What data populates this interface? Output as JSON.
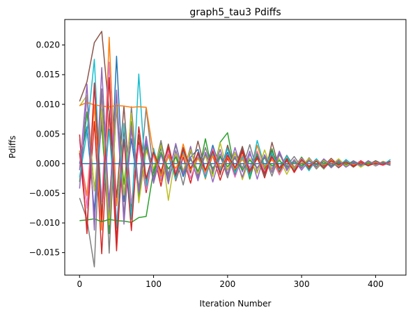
{
  "chart_data": {
    "type": "line",
    "title": "graph5_tau3 Pdiffs",
    "xlabel": "Iteration Number",
    "ylabel": "Pdiffs",
    "xlim": [
      -20,
      441
    ],
    "ylim": [
      -0.0188,
      0.0243
    ],
    "x_ticks": [
      0,
      100,
      200,
      300,
      400
    ],
    "x_tick_labels": [
      "0",
      "100",
      "200",
      "300",
      "400"
    ],
    "y_ticks": [
      -0.015,
      -0.01,
      -0.005,
      0.0,
      0.005,
      0.01,
      0.015,
      0.02
    ],
    "y_tick_labels": [
      "−0.015",
      "−0.010",
      "−0.005",
      "0.000",
      "0.005",
      "0.010",
      "0.015",
      "0.020"
    ],
    "grid": false,
    "legend": "none",
    "x": [
      0,
      10,
      20,
      30,
      40,
      50,
      60,
      70,
      80,
      90,
      100,
      110,
      120,
      130,
      140,
      150,
      160,
      170,
      180,
      190,
      200,
      210,
      220,
      230,
      240,
      250,
      260,
      270,
      280,
      290,
      300,
      310,
      320,
      330,
      340,
      350,
      360,
      370,
      380,
      390,
      400,
      410,
      420
    ],
    "series_colors": [
      "#1f77b4",
      "#ff7f0e",
      "#2ca02c",
      "#d62728",
      "#9467bd",
      "#8c564b",
      "#e377c2",
      "#7f7f7f",
      "#bcbd22",
      "#17becf"
    ],
    "series": [
      {
        "values": [
          0.0,
          0.0062,
          -0.0081,
          0.0123,
          -0.0095,
          0.0181,
          -0.0064,
          0.0042,
          -0.0052,
          0.0035,
          -0.0012,
          0.0026,
          -0.0031,
          0.0018,
          -0.0022,
          0.0011,
          0.0024,
          -0.0015,
          0.0031,
          -0.0008,
          0.0019,
          -0.0021,
          0.0027,
          -0.0011,
          0.0016,
          -0.0019,
          0.0022,
          -0.0007,
          0.0013,
          -0.0012,
          0.0009,
          -0.0005,
          0.0008,
          -0.0006,
          0.0004,
          -0.0003,
          0.0005,
          -0.0004,
          0.0003,
          -0.0002,
          0.0002,
          -0.0001,
          0.0004
        ]
      },
      {
        "values": [
          0.0022,
          -0.0054,
          0.0098,
          -0.0112,
          0.0213,
          -0.0071,
          0.0053,
          -0.0091,
          0.0044,
          -0.0037,
          0.0021,
          -0.0029,
          0.0016,
          -0.0024,
          0.0033,
          -0.0012,
          0.0017,
          -0.0026,
          0.0021,
          -0.0014,
          0.0028,
          -0.0009,
          0.0014,
          -0.0023,
          0.0031,
          -0.0008,
          0.0012,
          -0.0016,
          0.0007,
          -0.0011,
          0.0006,
          -0.0008,
          0.0005,
          -0.0007,
          0.0006,
          -0.0004,
          0.0003,
          -0.0005,
          0.0004,
          -0.0003,
          0.0002,
          -0.0002,
          0.0001
        ]
      },
      {
        "values": [
          -0.0031,
          0.0087,
          -0.0043,
          0.0065,
          -0.0118,
          0.0097,
          -0.0035,
          0.0071,
          -0.0058,
          0.0029,
          -0.0024,
          0.0037,
          -0.0019,
          0.0031,
          -0.0013,
          0.0026,
          -0.0021,
          0.0042,
          -0.0017,
          0.0036,
          0.0052,
          -0.0013,
          0.0021,
          -0.0026,
          0.0018,
          -0.0011,
          0.0025,
          -0.0014,
          0.0009,
          -0.0008,
          0.0011,
          -0.0006,
          0.0004,
          -0.0009,
          0.0005,
          -0.0004,
          0.0006,
          -0.0003,
          0.0002,
          -0.0004,
          0.0003,
          -0.0001,
          0.0002
        ]
      },
      {
        "values": [
          0.0018,
          -0.0103,
          0.0071,
          -0.0152,
          0.0089,
          -0.0147,
          0.0062,
          -0.0084,
          0.0036,
          -0.0049,
          0.0017,
          -0.0038,
          0.0024,
          -0.0029,
          0.0011,
          -0.0033,
          0.0019,
          -0.0022,
          0.0014,
          -0.0028,
          0.0009,
          -0.0017,
          0.0023,
          -0.0019,
          0.0012,
          -0.0024,
          0.0016,
          -0.0013,
          0.0008,
          -0.0015,
          0.0005,
          -0.0009,
          0.0007,
          -0.0005,
          0.0004,
          -0.0007,
          0.0003,
          -0.0004,
          0.0005,
          -0.0003,
          0.0001,
          -0.0002,
          0.0003
        ]
      },
      {
        "values": [
          -0.0042,
          0.0115,
          -0.0097,
          0.0078,
          -0.0061,
          0.0093,
          -0.0096,
          0.0058,
          -0.0041,
          0.0046,
          -0.0028,
          0.0019,
          -0.0034,
          0.0022,
          -0.0018,
          0.0029,
          -0.0024,
          0.0016,
          -0.0031,
          0.0012,
          -0.0019,
          0.0027,
          -0.0014,
          0.0021,
          -0.0026,
          0.0015,
          -0.0009,
          0.0018,
          -0.0012,
          0.0007,
          -0.0008,
          0.001,
          -0.0005,
          0.0006,
          -0.0007,
          0.0004,
          -0.0003,
          0.0005,
          -0.0002,
          0.0003,
          -0.0004,
          0.0002,
          -0.0001
        ]
      },
      {
        "values": [
          0.0105,
          0.0138,
          0.0204,
          0.0223,
          0.0086,
          -0.0057,
          0.0097,
          -0.0072,
          0.0049,
          -0.0031,
          0.0024,
          -0.0017,
          0.0033,
          -0.0021,
          0.0027,
          -0.0016,
          0.0038,
          -0.0012,
          0.0024,
          -0.0019,
          0.0031,
          -0.0008,
          0.0029,
          -0.0015,
          0.0011,
          -0.0022,
          0.0036,
          -0.0009,
          0.0014,
          -0.0006,
          0.0008,
          -0.0011,
          0.0006,
          -0.0004,
          0.0009,
          -0.0003,
          0.0004,
          -0.0006,
          0.0003,
          -0.0002,
          0.0005,
          -0.0001,
          0.0002
        ]
      },
      {
        "values": [
          0.0041,
          -0.0075,
          0.0128,
          -0.0064,
          0.0171,
          -0.0102,
          0.0045,
          -0.0067,
          0.0031,
          -0.0044,
          0.0015,
          -0.0027,
          0.0022,
          -0.0014,
          0.0019,
          -0.0025,
          0.0011,
          -0.0018,
          0.0026,
          -0.0009,
          0.0015,
          -0.0023,
          0.0012,
          -0.0006,
          0.0021,
          -0.0013,
          0.0008,
          -0.0019,
          0.0005,
          -0.0007,
          0.0009,
          -0.0004,
          0.0006,
          -0.0008,
          0.0003,
          -0.0005,
          0.0004,
          -0.0002,
          0.0003,
          -0.0004,
          0.0001,
          -0.0003,
          0.0002
        ]
      },
      {
        "values": [
          -0.0058,
          -0.0094,
          -0.0174,
          0.0126,
          -0.0151,
          0.0113,
          -0.0088,
          0.0096,
          -0.0047,
          0.0094,
          -0.0016,
          0.0039,
          -0.0025,
          0.0013,
          -0.0036,
          0.0021,
          -0.0014,
          0.0027,
          -0.0011,
          0.0016,
          -0.0024,
          0.0019,
          -0.0008,
          0.0032,
          -0.0013,
          0.0011,
          -0.0021,
          0.0015,
          -0.0004,
          0.0012,
          -0.0006,
          0.0007,
          -0.0009,
          0.0004,
          -0.0005,
          0.0006,
          -0.0003,
          0.0002,
          -0.0004,
          0.0005,
          -0.0002,
          0.0001,
          -0.0003
        ]
      },
      {
        "values": [
          0.0097,
          0.0115,
          -0.0046,
          0.0092,
          -0.0103,
          0.0101,
          -0.0053,
          0.0085,
          -0.0066,
          0.0022,
          -0.0009,
          0.0031,
          -0.0062,
          0.0017,
          -0.0012,
          0.0024,
          -0.0017,
          0.0013,
          -0.0022,
          0.0035,
          -0.0011,
          0.0018,
          -0.0027,
          0.0009,
          -0.0016,
          0.0023,
          -0.0012,
          0.0008,
          -0.0018,
          0.0006,
          -0.0004,
          0.0009,
          -0.0007,
          0.0005,
          -0.0003,
          0.0008,
          -0.0004,
          0.0003,
          -0.0006,
          0.0002,
          -0.0003,
          0.0004,
          -0.0001
        ]
      },
      {
        "values": [
          -0.0023,
          0.0052,
          0.0176,
          -0.0083,
          0.0058,
          -0.0109,
          0.0068,
          -0.0094,
          0.0151,
          -0.0038,
          0.0026,
          -0.0022,
          0.0013,
          -0.0027,
          0.0021,
          -0.0009,
          0.0016,
          -0.0024,
          0.0018,
          -0.0012,
          0.0026,
          -0.0016,
          0.0011,
          -0.0022,
          0.0039,
          -0.0005,
          0.0017,
          -0.0011,
          0.0013,
          -0.0009,
          0.0006,
          -0.0012,
          0.0008,
          -0.0006,
          0.0004,
          -0.0005,
          0.0007,
          -0.0003,
          0.0002,
          -0.0004,
          0.0003,
          -0.0002,
          0.0007
        ]
      },
      {
        "values": [
          0.0,
          0.0,
          0.0,
          0.0,
          0.0,
          0.0,
          0.0,
          0.0,
          0.0,
          0.0,
          0.0,
          0.0,
          0.0,
          0.0,
          0.0,
          0.0,
          0.0,
          0.0,
          0.0,
          0.0,
          0.0,
          0.0,
          0.0,
          0.0,
          0.0,
          0.0,
          0.0,
          0.0,
          0.0,
          0.0,
          0.0,
          0.0,
          0.0,
          0.0,
          0.0,
          0.0,
          0.0,
          0.0,
          0.0,
          0.0,
          0.0,
          0.0,
          0.0
        ]
      },
      {
        "values": [
          0.0098,
          0.0103,
          0.0099,
          0.0097,
          0.0096,
          0.0098,
          0.0097,
          0.0095,
          0.0096,
          0.0095,
          0.0016,
          -0.0021,
          0.0012,
          -0.0008,
          0.0015,
          -0.0011,
          0.0009,
          -0.0014,
          0.0013,
          -0.0006,
          0.0011,
          -0.0009,
          0.0007,
          -0.0012,
          0.0008,
          -0.0005,
          0.0006,
          -0.0007,
          0.0004,
          -0.0006,
          0.0003,
          -0.0004,
          0.0005,
          -0.0002,
          0.0003,
          -0.0003,
          0.0002,
          -0.0002,
          0.0001,
          -0.0001,
          0.0002,
          -0.0001,
          0.0001
        ]
      },
      {
        "values": [
          -0.0096,
          -0.0095,
          -0.0093,
          -0.0098,
          -0.0094,
          -0.0096,
          -0.0097,
          -0.0099,
          -0.0091,
          -0.0089,
          -0.0012,
          0.0018,
          -0.0009,
          0.0011,
          -0.0015,
          0.0007,
          -0.0013,
          0.0016,
          -0.0008,
          0.0012,
          -0.0005,
          0.0009,
          -0.0011,
          0.0006,
          -0.0007,
          0.001,
          -0.0004,
          0.0005,
          -0.0006,
          0.0003,
          -0.0003,
          0.0004,
          -0.0002,
          0.0003,
          -0.0004,
          0.0002,
          -0.0001,
          0.0003,
          -0.0002,
          0.0001,
          -0.0001,
          0.0002,
          -0.0001
        ]
      },
      {
        "values": [
          0.0049,
          -0.0118,
          0.0136,
          -0.0097,
          0.0145,
          -0.0129,
          0.0041,
          -0.0113,
          0.0062,
          -0.0025,
          0.0019,
          -0.0013,
          0.0028,
          -0.0019,
          0.0024,
          -0.0008,
          0.0017,
          -0.0011,
          0.0021,
          -0.0016,
          0.0014,
          -0.0007,
          0.0019,
          -0.0013,
          0.0009,
          -0.0016,
          0.0011,
          -0.0008,
          0.0005,
          -0.0013,
          0.0007,
          -0.0005,
          0.0004,
          -0.0007,
          0.0005,
          -0.0002,
          0.0003,
          -0.0004,
          0.0002,
          -0.0003,
          0.0001,
          -0.0002,
          0.0004
        ]
      },
      {
        "values": [
          -0.0011,
          0.0134,
          -0.0112,
          0.0162,
          -0.0078,
          0.0124,
          -0.0102,
          0.0064,
          -0.0049,
          0.0041,
          -0.0033,
          0.0015,
          -0.0021,
          0.0034,
          -0.0016,
          0.0011,
          -0.0029,
          0.0019,
          -0.0013,
          0.0024,
          -0.0017,
          0.0012,
          -0.0023,
          0.0016,
          -0.0008,
          0.0013,
          -0.0015,
          0.0021,
          -0.0009,
          0.0006,
          -0.0011,
          0.0005,
          -0.0006,
          0.0008,
          -0.0003,
          0.0005,
          -0.0006,
          0.0002,
          -0.0003,
          0.0004,
          -0.0002,
          0.0003,
          -0.0001
        ]
      }
    ]
  }
}
